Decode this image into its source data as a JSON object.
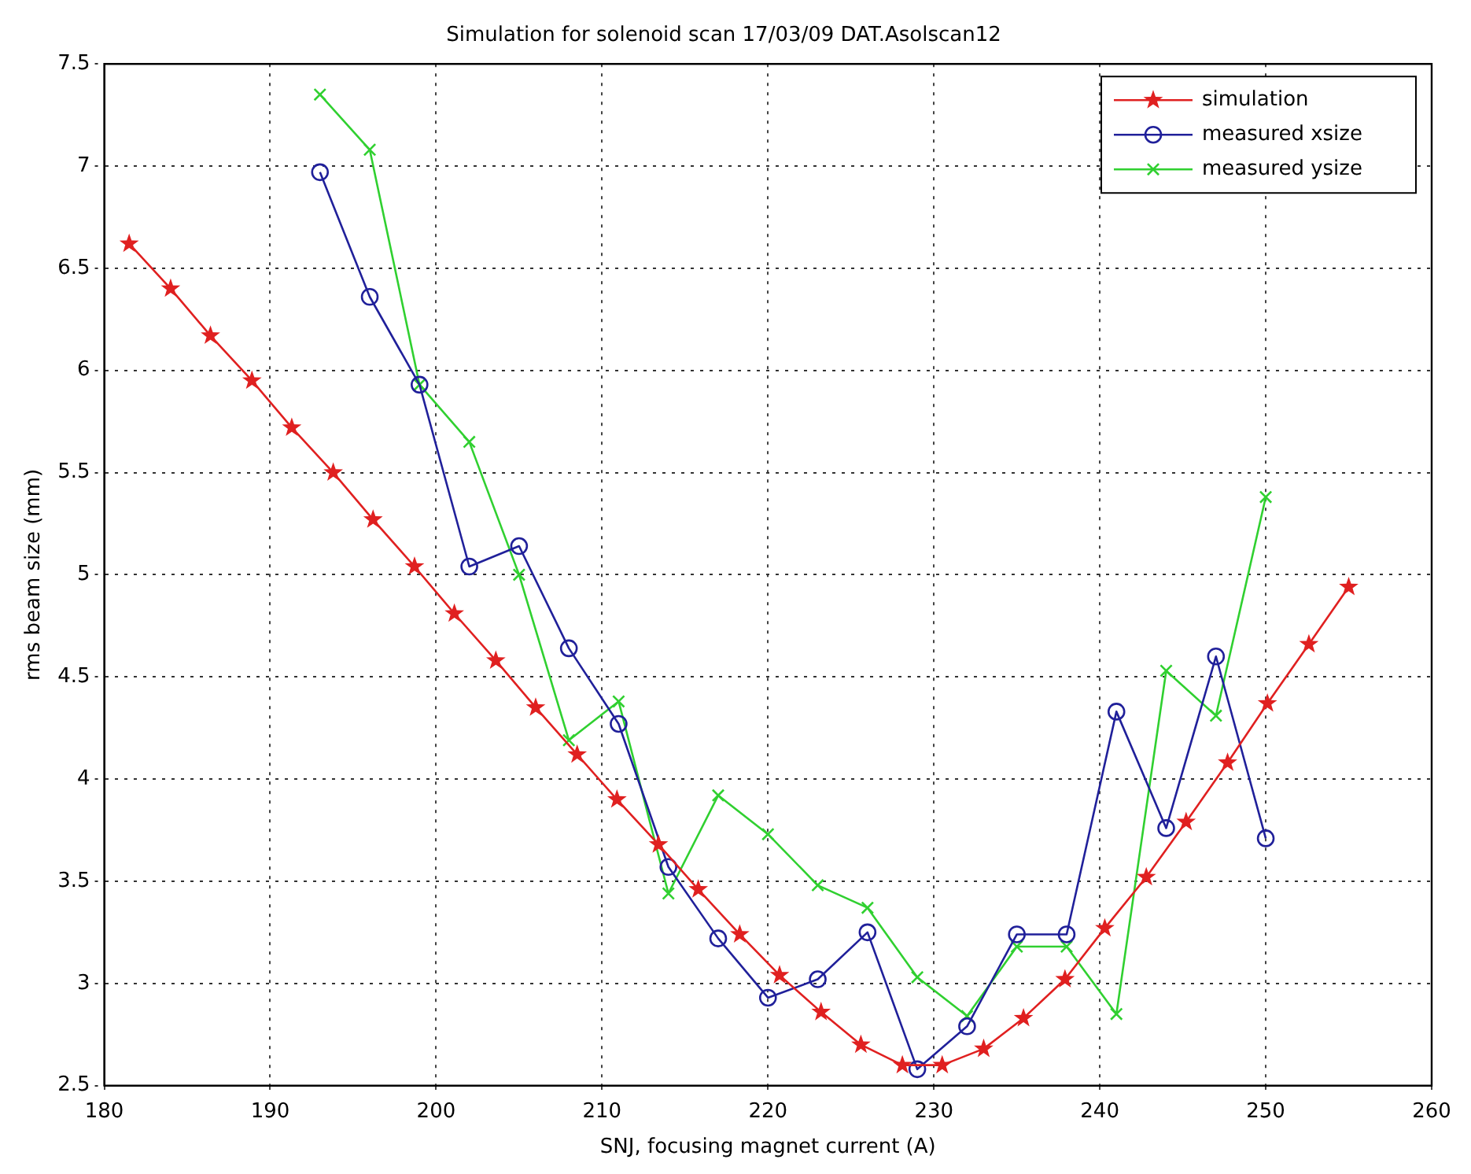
{
  "chart_data": {
    "type": "line",
    "title": "Simulation for solenoid scan 17/03/09 DAT.Asolscan12",
    "xlabel": "SNJ, focusing magnet current (A)",
    "ylabel": "rms beam size (mm)",
    "xlim": [
      180,
      260
    ],
    "xticks": [
      180,
      190,
      200,
      210,
      220,
      230,
      240,
      250,
      260
    ],
    "ylim": [
      2.5,
      7.5
    ],
    "yticks": [
      2.5,
      3,
      3.5,
      4,
      4.5,
      5,
      5.5,
      6,
      6.5,
      7,
      7.5
    ],
    "grid": true,
    "legend": "top right",
    "series": [
      {
        "name": "simulation",
        "color": "#e02020",
        "marker": "star",
        "x": [
          181.5,
          184,
          186.4,
          188.9,
          191.3,
          193.8,
          196.2,
          198.7,
          201.1,
          203.6,
          206,
          208.5,
          210.9,
          213.4,
          215.8,
          218.3,
          220.7,
          223.2,
          225.6,
          228.1,
          230.5,
          233,
          235.4,
          237.9,
          240.3,
          242.8,
          245.2,
          247.7,
          250.1,
          252.6,
          255
        ],
        "values": [
          6.62,
          6.4,
          6.17,
          5.95,
          5.72,
          5.5,
          5.27,
          5.04,
          4.81,
          4.58,
          4.35,
          4.12,
          3.9,
          3.68,
          3.46,
          3.24,
          3.04,
          2.86,
          2.7,
          2.6,
          2.6,
          2.68,
          2.83,
          3.02,
          3.27,
          3.52,
          3.79,
          4.08,
          4.37,
          4.66,
          4.94
        ]
      },
      {
        "name": "measured xsize",
        "color": "#20209a",
        "marker": "circle",
        "x": [
          193,
          196,
          199,
          202,
          205,
          208,
          211,
          214,
          217,
          220,
          223,
          226,
          229,
          232,
          235,
          238,
          241,
          244,
          247,
          250
        ],
        "values": [
          6.97,
          6.36,
          5.93,
          5.04,
          5.14,
          4.64,
          4.27,
          3.57,
          3.22,
          2.93,
          3.02,
          3.25,
          2.58,
          2.79,
          3.24,
          3.24,
          4.33,
          3.76,
          4.6,
          3.71
        ]
      },
      {
        "name": "measured ysize",
        "color": "#30d030",
        "marker": "cross",
        "x": [
          193,
          196,
          199,
          202,
          205,
          208,
          211,
          214,
          217,
          220,
          223,
          226,
          229,
          232,
          235,
          238,
          241,
          244,
          247,
          250
        ],
        "values": [
          7.35,
          7.08,
          5.93,
          5.65,
          5.0,
          4.19,
          4.38,
          3.44,
          3.92,
          3.73,
          3.48,
          3.37,
          3.03,
          2.84,
          3.18,
          3.18,
          2.85,
          4.53,
          4.31,
          5.38
        ]
      }
    ]
  }
}
